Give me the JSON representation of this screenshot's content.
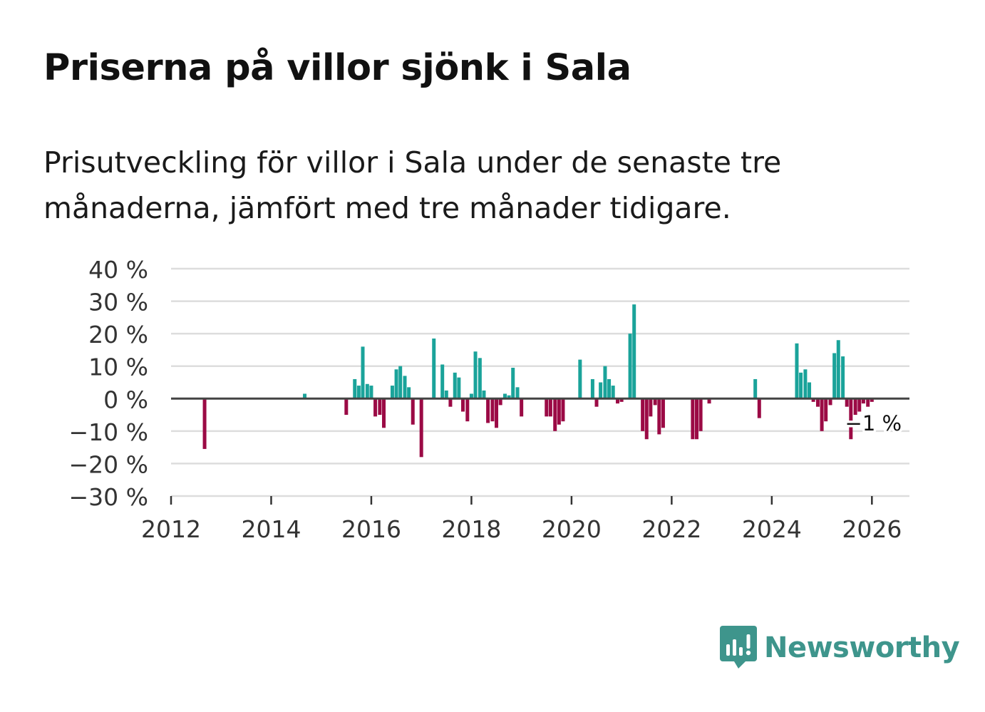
{
  "header": {
    "title": "Priserna på villor sjönk i Sala",
    "subtitle": "Prisutveckling för villor i Sala under de senaste tre månaderna, jämfört med tre månader tidigare."
  },
  "brand": {
    "name": "Newsworthy",
    "color": "#3e958c"
  },
  "colors": {
    "positive": "#1aa39a",
    "negative": "#9b0a45",
    "grid": "#dddddd",
    "zero_line": "#444444"
  },
  "chart_data": {
    "type": "bar",
    "title": "Priserna på villor sjönk i Sala",
    "subtitle": "Prisutveckling för villor i Sala under de senaste tre månaderna, jämfört med tre månader tidigare.",
    "xlabel": "",
    "ylabel": "",
    "unit": "%",
    "xlim": [
      2012.0,
      2026.75
    ],
    "ylim": [
      -30,
      40
    ],
    "yticks": [
      40,
      30,
      20,
      10,
      0,
      -10,
      -20,
      -30
    ],
    "ytick_labels": [
      "40 %",
      "30 %",
      "20 %",
      "10 %",
      "0 %",
      "−10 %",
      "−20 %",
      "−30 %"
    ],
    "xticks": [
      2012,
      2014,
      2016,
      2018,
      2020,
      2022,
      2024,
      2026
    ],
    "xtick_labels": [
      "2012",
      "2014",
      "2016",
      "2018",
      "2020",
      "2022",
      "2024",
      "2026"
    ],
    "grid": true,
    "annotation": {
      "label": "−1 %",
      "x": 2026.0,
      "value": -1
    },
    "series": [
      {
        "name": "Prisutveckling",
        "points": [
          [
            2012.67,
            -15.5
          ],
          [
            2014.67,
            1.5
          ],
          [
            2015.5,
            -5
          ],
          [
            2015.67,
            6
          ],
          [
            2015.75,
            4
          ],
          [
            2015.83,
            16
          ],
          [
            2015.92,
            4.5
          ],
          [
            2016.0,
            4
          ],
          [
            2016.08,
            -5.5
          ],
          [
            2016.17,
            -5
          ],
          [
            2016.25,
            -9
          ],
          [
            2016.42,
            4
          ],
          [
            2016.5,
            9
          ],
          [
            2016.58,
            10
          ],
          [
            2016.67,
            7
          ],
          [
            2016.75,
            3.5
          ],
          [
            2016.83,
            -8
          ],
          [
            2017.0,
            -18
          ],
          [
            2017.25,
            18.5
          ],
          [
            2017.42,
            10.5
          ],
          [
            2017.5,
            2.5
          ],
          [
            2017.58,
            -2.5
          ],
          [
            2017.67,
            8
          ],
          [
            2017.75,
            6.5
          ],
          [
            2017.83,
            -4
          ],
          [
            2017.92,
            -7
          ],
          [
            2018.0,
            1.5
          ],
          [
            2018.08,
            14.5
          ],
          [
            2018.17,
            12.5
          ],
          [
            2018.25,
            2.5
          ],
          [
            2018.33,
            -7.5
          ],
          [
            2018.42,
            -7
          ],
          [
            2018.5,
            -9
          ],
          [
            2018.58,
            -2
          ],
          [
            2018.67,
            1.5
          ],
          [
            2018.75,
            1
          ],
          [
            2018.83,
            9.5
          ],
          [
            2018.92,
            3.5
          ],
          [
            2019.0,
            -5.5
          ],
          [
            2019.5,
            -5.5
          ],
          [
            2019.58,
            -5.5
          ],
          [
            2019.67,
            -10
          ],
          [
            2019.75,
            -8
          ],
          [
            2019.83,
            -7
          ],
          [
            2020.17,
            12
          ],
          [
            2020.42,
            6
          ],
          [
            2020.5,
            -2.5
          ],
          [
            2020.58,
            5
          ],
          [
            2020.67,
            10
          ],
          [
            2020.75,
            6
          ],
          [
            2020.83,
            4
          ],
          [
            2020.92,
            -1.5
          ],
          [
            2021.0,
            -1
          ],
          [
            2021.17,
            20
          ],
          [
            2021.25,
            29
          ],
          [
            2021.42,
            -10
          ],
          [
            2021.5,
            -12.5
          ],
          [
            2021.58,
            -5.5
          ],
          [
            2021.67,
            -2
          ],
          [
            2021.75,
            -11
          ],
          [
            2021.83,
            -9
          ],
          [
            2022.42,
            -12.5
          ],
          [
            2022.5,
            -12.5
          ],
          [
            2022.58,
            -10
          ],
          [
            2022.75,
            -1.5
          ],
          [
            2023.67,
            6
          ],
          [
            2023.75,
            -6
          ],
          [
            2024.5,
            17
          ],
          [
            2024.58,
            8
          ],
          [
            2024.67,
            9
          ],
          [
            2024.75,
            5
          ],
          [
            2024.83,
            -1
          ],
          [
            2024.92,
            -2.5
          ],
          [
            2025.0,
            -10
          ],
          [
            2025.08,
            -7
          ],
          [
            2025.17,
            -2
          ],
          [
            2025.25,
            14
          ],
          [
            2025.33,
            18
          ],
          [
            2025.42,
            13
          ],
          [
            2025.5,
            -2.5
          ],
          [
            2025.58,
            -12.5
          ],
          [
            2025.67,
            -5
          ],
          [
            2025.75,
            -4
          ],
          [
            2025.83,
            -1.5
          ],
          [
            2025.92,
            -2.5
          ],
          [
            2026.0,
            -1
          ]
        ]
      }
    ]
  }
}
